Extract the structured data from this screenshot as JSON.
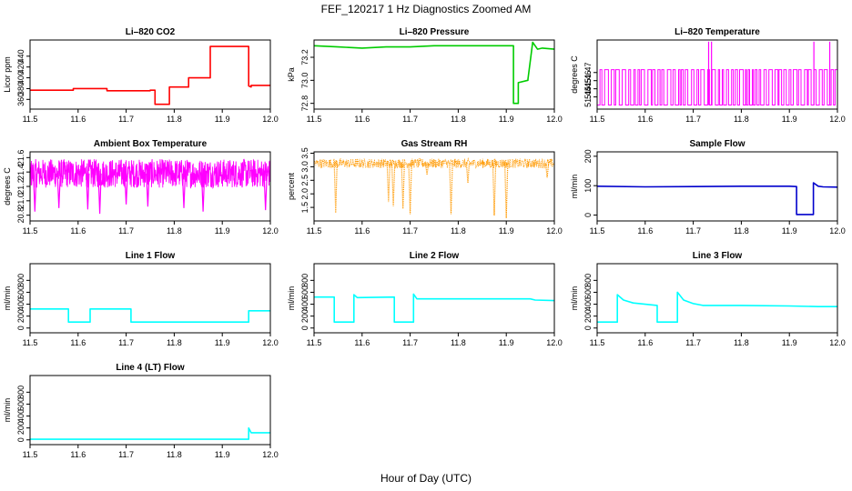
{
  "figure": {
    "title": "FEF_120217  1 Hz Diagnostics Zoomed AM",
    "xlabel": "Hour of Day (UTC)"
  },
  "chart_data": [
    {
      "type": "line",
      "title": "Li–820 CO2",
      "ylabel": "Licor ppm",
      "color": "#ff0000",
      "xlim": [
        11.5,
        12.0
      ],
      "ylim": [
        342,
        470
      ],
      "xticks": [
        "11.5",
        "11.6",
        "11.7",
        "11.8",
        "11.9",
        "12.0"
      ],
      "yticks": [
        {
          "v": 360,
          "label": "360"
        },
        {
          "v": 380,
          "label": "380"
        },
        {
          "v": 400,
          "label": "400"
        },
        {
          "v": 420,
          "label": "420"
        },
        {
          "v": 440,
          "label": "440"
        }
      ],
      "series": [
        {
          "x": [
            11.5,
            11.59,
            11.59,
            11.66,
            11.66,
            11.75,
            11.75,
            11.76,
            11.76,
            11.79,
            11.79,
            11.83,
            11.83,
            11.875,
            11.875,
            11.955,
            11.955,
            11.96,
            11.96,
            12.0
          ],
          "y": [
            377,
            377,
            380,
            380,
            376,
            376,
            377,
            377,
            351,
            351,
            383,
            383,
            400,
            400,
            458,
            458,
            385,
            383,
            386,
            386
          ]
        }
      ]
    },
    {
      "type": "line",
      "title": "Li–820 Pressure",
      "ylabel": "kPa",
      "color": "#00cc00",
      "xlim": [
        11.5,
        12.0
      ],
      "ylim": [
        72.75,
        73.35
      ],
      "xticks": [
        "11.5",
        "11.6",
        "11.7",
        "11.8",
        "11.9",
        "12.0"
      ],
      "yticks": [
        {
          "v": 72.8,
          "label": "72.8"
        },
        {
          "v": 73.0,
          "label": "73.0"
        },
        {
          "v": 73.2,
          "label": "73.2"
        }
      ],
      "series": [
        {
          "x": [
            11.5,
            11.55,
            11.6,
            11.65,
            11.7,
            11.75,
            11.8,
            11.85,
            11.9,
            11.915,
            11.915,
            11.925,
            11.925,
            11.945,
            11.945,
            11.955,
            11.955,
            11.965,
            11.975,
            12.0
          ],
          "y": [
            73.3,
            73.29,
            73.28,
            73.29,
            73.29,
            73.3,
            73.3,
            73.3,
            73.3,
            73.3,
            72.8,
            72.8,
            72.98,
            73.0,
            73.01,
            73.33,
            73.33,
            73.27,
            73.28,
            73.27
          ]
        }
      ]
    },
    {
      "type": "line",
      "title": "Li–820 Temperature",
      "ylabel": "degrees C",
      "color": "#ff00ff",
      "xlim": [
        11.5,
        12.0
      ],
      "ylim": [
        51.425,
        51.51
      ],
      "xticks": [
        "11.5",
        "11.6",
        "11.7",
        "11.8",
        "11.9",
        "12.0"
      ],
      "yticks": [
        {
          "v": 51.44,
          "label": "51.44"
        },
        {
          "v": 51.45,
          "label": "51.45"
        },
        {
          "v": 51.46,
          "label": "51.46"
        },
        {
          "v": 51.47,
          "label": "51.47"
        }
      ],
      "levels": [
        51.43,
        51.4735
      ],
      "spikes_x": [
        11.732,
        11.738,
        11.951,
        11.984
      ],
      "spike_top": 51.508
    },
    {
      "type": "line",
      "title": "Ambient Box Temperature",
      "ylabel": "degrees C",
      "color": "#ff00ff",
      "xlim": [
        11.5,
        12.0
      ],
      "ylim": [
        20.72,
        21.68
      ],
      "xticks": [
        "11.5",
        "11.6",
        "11.7",
        "11.8",
        "11.9",
        "12.0"
      ],
      "yticks": [
        {
          "v": 20.8,
          "label": "20.8"
        },
        {
          "v": 21.0,
          "label": "21.0"
        },
        {
          "v": 21.2,
          "label": "21.2"
        },
        {
          "v": 21.4,
          "label": "21.4"
        },
        {
          "v": 21.6,
          "label": "21.6"
        }
      ],
      "band": [
        21.18,
        21.58
      ],
      "dips": [
        {
          "x": 11.51,
          "y": 20.85
        },
        {
          "x": 11.56,
          "y": 20.9
        },
        {
          "x": 11.62,
          "y": 20.88
        },
        {
          "x": 11.645,
          "y": 20.82
        },
        {
          "x": 11.7,
          "y": 20.95
        },
        {
          "x": 11.745,
          "y": 20.92
        },
        {
          "x": 11.82,
          "y": 20.9
        },
        {
          "x": 11.86,
          "y": 20.85
        },
        {
          "x": 11.99,
          "y": 20.87
        }
      ]
    },
    {
      "type": "scatter",
      "title": "Gas Stream RH",
      "ylabel": "percent",
      "color": "#ff9900",
      "xlim": [
        11.5,
        12.0
      ],
      "ylim": [
        1.0,
        3.55
      ],
      "xticks": [
        "11.5",
        "11.6",
        "11.7",
        "11.8",
        "11.9",
        "12.0"
      ],
      "yticks": [
        {
          "v": 1.5,
          "label": "1.5"
        },
        {
          "v": 2.0,
          "label": "2.0"
        },
        {
          "v": 2.5,
          "label": "2.5"
        },
        {
          "v": 3.0,
          "label": "3.0"
        },
        {
          "v": 3.5,
          "label": "3.5"
        }
      ],
      "band": [
        2.95,
        3.3
      ],
      "dips": [
        {
          "x": 11.545,
          "y": 1.3
        },
        {
          "x": 11.655,
          "y": 1.7
        },
        {
          "x": 11.665,
          "y": 1.55
        },
        {
          "x": 11.685,
          "y": 1.45
        },
        {
          "x": 11.7,
          "y": 1.25
        },
        {
          "x": 11.735,
          "y": 2.7
        },
        {
          "x": 11.785,
          "y": 1.25
        },
        {
          "x": 11.82,
          "y": 2.4
        },
        {
          "x": 11.875,
          "y": 1.2
        },
        {
          "x": 11.9,
          "y": 1.1
        },
        {
          "x": 11.985,
          "y": 2.6
        }
      ]
    },
    {
      "type": "line",
      "title": "Sample Flow",
      "ylabel": "ml/min",
      "color": "#0000cc",
      "xlim": [
        11.5,
        12.0
      ],
      "ylim": [
        -20,
        215
      ],
      "xticks": [
        "11.5",
        "11.6",
        "11.7",
        "11.8",
        "11.9",
        "12.0"
      ],
      "yticks": [
        {
          "v": 0,
          "label": "0"
        },
        {
          "v": 100,
          "label": "100"
        },
        {
          "v": 200,
          "label": "200"
        }
      ],
      "series": [
        {
          "x": [
            11.5,
            11.6,
            11.7,
            11.8,
            11.9,
            11.915,
            11.915,
            11.95,
            11.95,
            11.96,
            11.97,
            12.0
          ],
          "y": [
            98,
            96,
            97,
            98,
            98,
            97,
            2,
            2,
            110,
            98,
            96,
            95
          ]
        }
      ]
    },
    {
      "type": "line",
      "title": "Line 1 Flow",
      "ylabel": "ml/min",
      "color": "#00ffff",
      "xlim": [
        11.5,
        12.0
      ],
      "ylim": [
        -80,
        1080
      ],
      "xticks": [
        "11.5",
        "11.6",
        "11.7",
        "11.8",
        "11.9",
        "12.0"
      ],
      "yticks": [
        {
          "v": 0,
          "label": "0"
        },
        {
          "v": 200,
          "label": "200"
        },
        {
          "v": 400,
          "label": "400"
        },
        {
          "v": 600,
          "label": "600"
        },
        {
          "v": 800,
          "label": "800"
        }
      ],
      "series": [
        {
          "x": [
            11.5,
            11.58,
            11.58,
            11.625,
            11.625,
            11.71,
            11.71,
            11.955,
            11.955,
            12.0
          ],
          "y": [
            320,
            320,
            100,
            100,
            320,
            320,
            100,
            100,
            290,
            290
          ]
        }
      ]
    },
    {
      "type": "line",
      "title": "Line 2 Flow",
      "ylabel": "ml/min",
      "color": "#00ffff",
      "xlim": [
        11.5,
        12.0
      ],
      "ylim": [
        -80,
        1080
      ],
      "xticks": [
        "11.5",
        "11.6",
        "11.7",
        "11.8",
        "11.9",
        "12.0"
      ],
      "yticks": [
        {
          "v": 0,
          "label": "0"
        },
        {
          "v": 200,
          "label": "200"
        },
        {
          "v": 400,
          "label": "400"
        },
        {
          "v": 600,
          "label": "600"
        },
        {
          "v": 800,
          "label": "800"
        }
      ],
      "series": [
        {
          "x": [
            11.5,
            11.542,
            11.542,
            11.583,
            11.583,
            11.59,
            11.667,
            11.667,
            11.707,
            11.707,
            11.714,
            11.95,
            11.96,
            12.0
          ],
          "y": [
            520,
            520,
            100,
            100,
            560,
            510,
            520,
            100,
            100,
            570,
            490,
            490,
            470,
            460
          ]
        }
      ]
    },
    {
      "type": "line",
      "title": "Line 3 Flow",
      "ylabel": "ml/min",
      "color": "#00ffff",
      "xlim": [
        11.5,
        12.0
      ],
      "ylim": [
        -80,
        1080
      ],
      "xticks": [
        "11.5",
        "11.6",
        "11.7",
        "11.8",
        "11.9",
        "12.0"
      ],
      "yticks": [
        {
          "v": 0,
          "label": "0"
        },
        {
          "v": 200,
          "label": "200"
        },
        {
          "v": 400,
          "label": "400"
        },
        {
          "v": 600,
          "label": "600"
        },
        {
          "v": 800,
          "label": "800"
        }
      ],
      "series": [
        {
          "x": [
            11.5,
            11.542,
            11.542,
            11.555,
            11.575,
            11.6,
            11.625,
            11.625,
            11.667,
            11.667,
            11.68,
            11.7,
            11.72,
            11.8,
            11.9,
            11.96,
            12.0
          ],
          "y": [
            100,
            100,
            560,
            470,
            420,
            400,
            380,
            100,
            100,
            600,
            470,
            410,
            380,
            380,
            370,
            360,
            360
          ]
        }
      ]
    },
    {
      "type": "line",
      "title": "Line 4 (LT) Flow",
      "ylabel": "ml/min",
      "color": "#00ffff",
      "xlim": [
        11.5,
        12.0
      ],
      "ylim": [
        -80,
        1080
      ],
      "xticks": [
        "11.5",
        "11.6",
        "11.7",
        "11.8",
        "11.9",
        "12.0"
      ],
      "yticks": [
        {
          "v": 0,
          "label": "0"
        },
        {
          "v": 200,
          "label": "200"
        },
        {
          "v": 400,
          "label": "400"
        },
        {
          "v": 600,
          "label": "600"
        },
        {
          "v": 800,
          "label": "800"
        }
      ],
      "series": [
        {
          "x": [
            11.5,
            11.6,
            11.7,
            11.8,
            11.9,
            11.955,
            11.955,
            11.96,
            12.0
          ],
          "y": [
            10,
            10,
            10,
            10,
            10,
            10,
            200,
            120,
            120
          ]
        }
      ]
    }
  ]
}
